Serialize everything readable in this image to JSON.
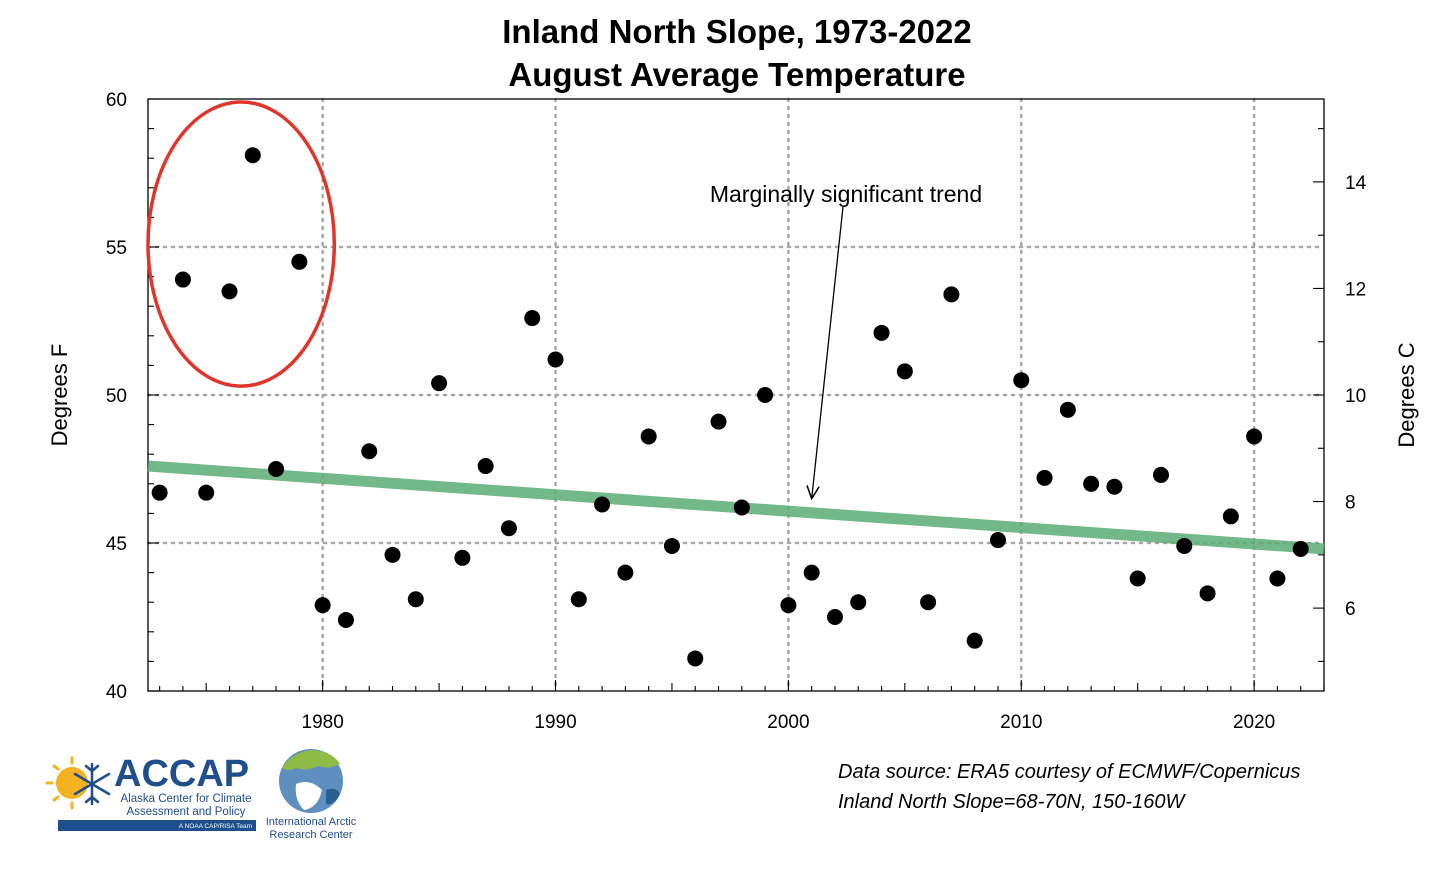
{
  "chart_data": {
    "type": "scatter",
    "title": [
      "Inland North Slope, 1973-2022",
      "August Average Temperature"
    ],
    "ylabel": "Degrees F",
    "y2label": "Degrees C",
    "xlim": [
      1972.5,
      2023
    ],
    "ylim": [
      40,
      60
    ],
    "y2lim": [
      4.444,
      15.556
    ],
    "xticks": [
      1980,
      1990,
      2000,
      2010,
      2020
    ],
    "yticks": [
      40,
      45,
      50,
      55,
      60
    ],
    "y2ticks": [
      6,
      8,
      10,
      12,
      14
    ],
    "grid": true,
    "series": [
      {
        "x": [
          1973,
          1974,
          1975,
          1976,
          1977,
          1978,
          1979,
          1980,
          1981,
          1982,
          1983,
          1984,
          1985,
          1986,
          1987,
          1988,
          1989,
          1990,
          1991,
          1992,
          1993,
          1994,
          1995,
          1996,
          1997,
          1998,
          1999,
          2000,
          2001,
          2002,
          2003,
          2004,
          2005,
          2006,
          2007,
          2008,
          2009,
          2010,
          2011,
          2012,
          2013,
          2014,
          2015,
          2016,
          2017,
          2018,
          2019,
          2020,
          2021,
          2022
        ],
        "y": [
          46.7,
          53.9,
          46.7,
          53.5,
          58.1,
          47.5,
          54.5,
          42.9,
          42.4,
          48.1,
          44.6,
          43.1,
          50.4,
          44.5,
          47.6,
          45.5,
          52.6,
          51.2,
          43.1,
          46.3,
          44.0,
          48.6,
          44.9,
          41.1,
          49.1,
          46.2,
          50.0,
          42.9,
          44.0,
          42.5,
          43.0,
          52.1,
          50.8,
          43.0,
          53.4,
          41.7,
          45.1,
          50.5,
          47.2,
          49.5,
          47.0,
          46.9,
          43.8,
          47.3,
          44.9,
          43.3,
          45.9,
          48.6,
          43.8,
          44.8
        ]
      }
    ],
    "trend_line": {
      "x": [
        1972.5,
        2023
      ],
      "y": [
        47.6,
        44.8
      ]
    },
    "highlight_ellipse": {
      "x_range": [
        1972.5,
        1980.5
      ],
      "y_range": [
        50.3,
        59.9
      ]
    },
    "annotation": {
      "text": "Marginally significant trend",
      "x": 2001,
      "y": 46.5
    },
    "colors": {
      "points": "#000000",
      "trend": "#5aab74",
      "highlight": "#e0352b",
      "grid": "#a6a6a6"
    }
  },
  "source_lines": [
    "Data source: ERA5 courtesy of ECMWF/Copernicus",
    "Inland North Slope=68-70N, 150-160W"
  ],
  "logos": {
    "accap": {
      "name": "ACCAP",
      "line1": "Alaska Center for Climate",
      "line2": "Assessment and Policy",
      "band": "A NOAA CAP/RISA Team",
      "icon": "sun-snowflake-icon"
    },
    "iarc": {
      "line1": "International Arctic",
      "line2": "Research Center",
      "icon": "arctic-globe-icon"
    }
  }
}
